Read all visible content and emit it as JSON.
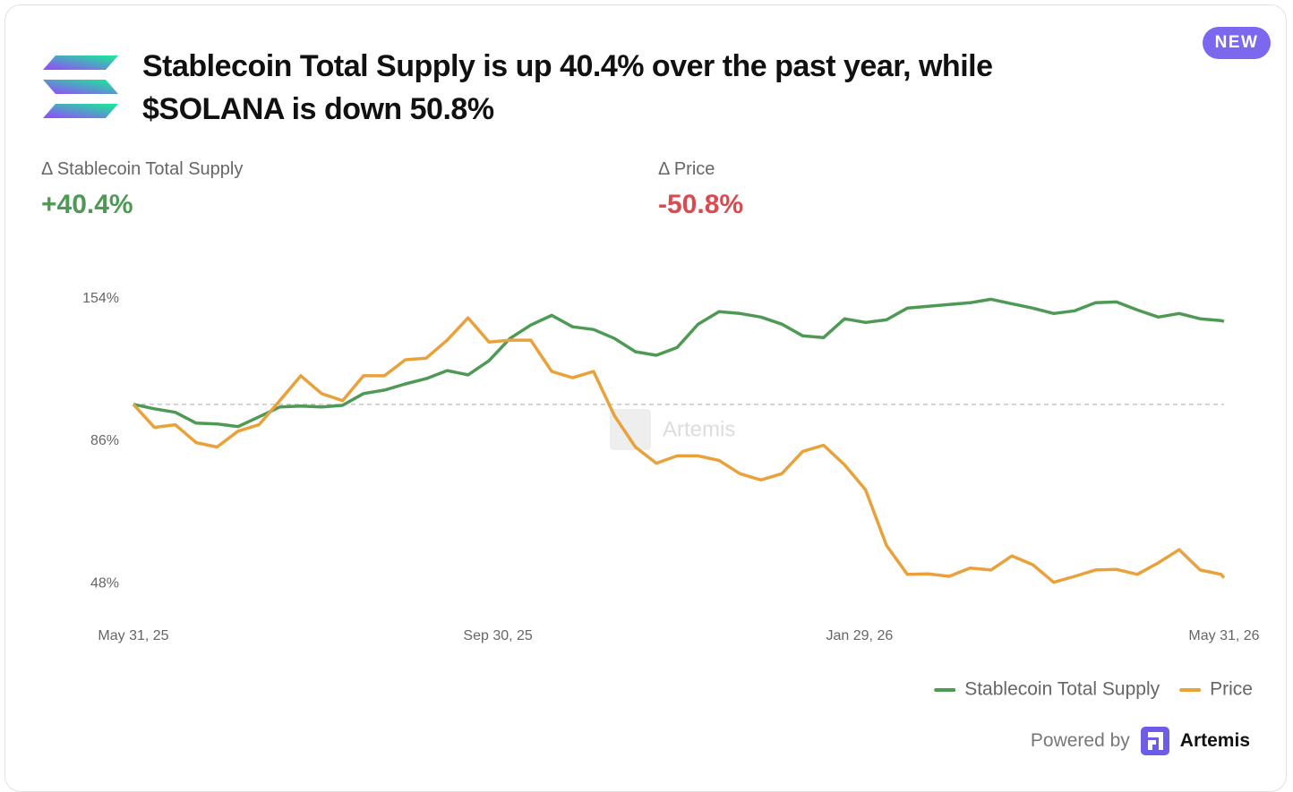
{
  "header": {
    "title": "Stablecoin Total Supply is up 40.4% over the past year, while $SOLANA is down 50.8%",
    "badge": "NEW"
  },
  "stats": [
    {
      "label": "Δ Stablecoin Total Supply",
      "value": "+40.4%",
      "color": "#4e9a55"
    },
    {
      "label": "Δ Price",
      "value": "-50.8%",
      "color": "#dc4a4f"
    }
  ],
  "chart_data": {
    "type": "line",
    "log_scale": true,
    "grid": false,
    "baseline": 100,
    "watermark": "Artemis",
    "x": [
      "2025-05-31",
      "2025-06-07",
      "2025-06-14",
      "2025-06-21",
      "2025-06-28",
      "2025-07-05",
      "2025-07-12",
      "2025-07-19",
      "2025-07-26",
      "2025-08-02",
      "2025-08-09",
      "2025-08-16",
      "2025-08-23",
      "2025-08-30",
      "2025-09-06",
      "2025-09-13",
      "2025-09-20",
      "2025-09-27",
      "2025-10-04",
      "2025-10-11",
      "2025-10-18",
      "2025-10-25",
      "2025-11-01",
      "2025-11-08",
      "2025-11-15",
      "2025-11-22",
      "2025-11-29",
      "2025-12-06",
      "2025-12-13",
      "2025-12-20",
      "2025-12-27",
      "2026-01-03",
      "2026-01-10",
      "2026-01-17",
      "2026-01-24",
      "2026-01-31",
      "2026-02-07",
      "2026-02-14",
      "2026-02-21",
      "2026-02-28",
      "2026-03-07",
      "2026-03-14",
      "2026-03-21",
      "2026-03-28",
      "2026-04-04",
      "2026-04-11",
      "2026-04-18",
      "2026-04-25",
      "2026-05-02",
      "2026-05-09",
      "2026-05-16",
      "2026-05-23",
      "2026-05-30",
      "2026-05-31"
    ],
    "xlim": [
      "2025-05-31",
      "2026-05-31"
    ],
    "xticks": [
      {
        "value": "2025-05-31",
        "label": "May 31, 25"
      },
      {
        "value": "2025-09-30",
        "label": "Sep 30, 25"
      },
      {
        "value": "2026-01-29",
        "label": "Jan 29, 26"
      },
      {
        "value": "2026-05-31",
        "label": "May 31, 26"
      }
    ],
    "ylim": [
      45,
      162
    ],
    "yticks": [
      {
        "value": 154,
        "label": "154%"
      },
      {
        "value": 86,
        "label": "86%"
      },
      {
        "value": 48,
        "label": "48%"
      }
    ],
    "legend": "bottom-right",
    "series": [
      {
        "name": "Stablecoin Total Supply",
        "color": "#4e9a55",
        "values": [
          100,
          98.2,
          96.8,
          92.6,
          92.3,
          91.3,
          95.0,
          98.9,
          99.3,
          98.9,
          99.6,
          104.5,
          106.0,
          108.7,
          111.1,
          114.8,
          112.8,
          119.5,
          130.9,
          138.3,
          143.9,
          137.3,
          135.8,
          130.9,
          124.0,
          122.2,
          126.2,
          138.8,
          146.1,
          145.0,
          142.9,
          138.8,
          132.3,
          131.4,
          141.9,
          139.8,
          141.3,
          148.2,
          149.3,
          150.4,
          151.5,
          153.7,
          150.9,
          148.2,
          145.0,
          146.6,
          151.5,
          152.0,
          147.1,
          142.9,
          145.0,
          141.9,
          140.8,
          140.4
        ]
      },
      {
        "name": "Price",
        "color": "#e9a23b",
        "values": [
          100,
          91.0,
          92.0,
          85.5,
          84.0,
          89.6,
          92.0,
          101.5,
          112.4,
          104.5,
          101.5,
          112.4,
          112.4,
          120.0,
          120.8,
          130.0,
          142.4,
          129.0,
          130.0,
          130.0,
          114.4,
          111.5,
          114.4,
          95.4,
          84.0,
          78.6,
          81.0,
          81.0,
          79.5,
          75.3,
          73.4,
          75.3,
          82.5,
          84.6,
          78.1,
          70.5,
          56.2,
          49.9,
          50.0,
          49.5,
          51.2,
          50.8,
          53.8,
          51.9,
          48.3,
          49.5,
          50.8,
          50.9,
          49.9,
          52.3,
          55.2,
          50.8,
          49.9,
          49.2
        ]
      }
    ]
  },
  "footer": {
    "powered_by": "Powered by",
    "brand": "Artemis"
  }
}
